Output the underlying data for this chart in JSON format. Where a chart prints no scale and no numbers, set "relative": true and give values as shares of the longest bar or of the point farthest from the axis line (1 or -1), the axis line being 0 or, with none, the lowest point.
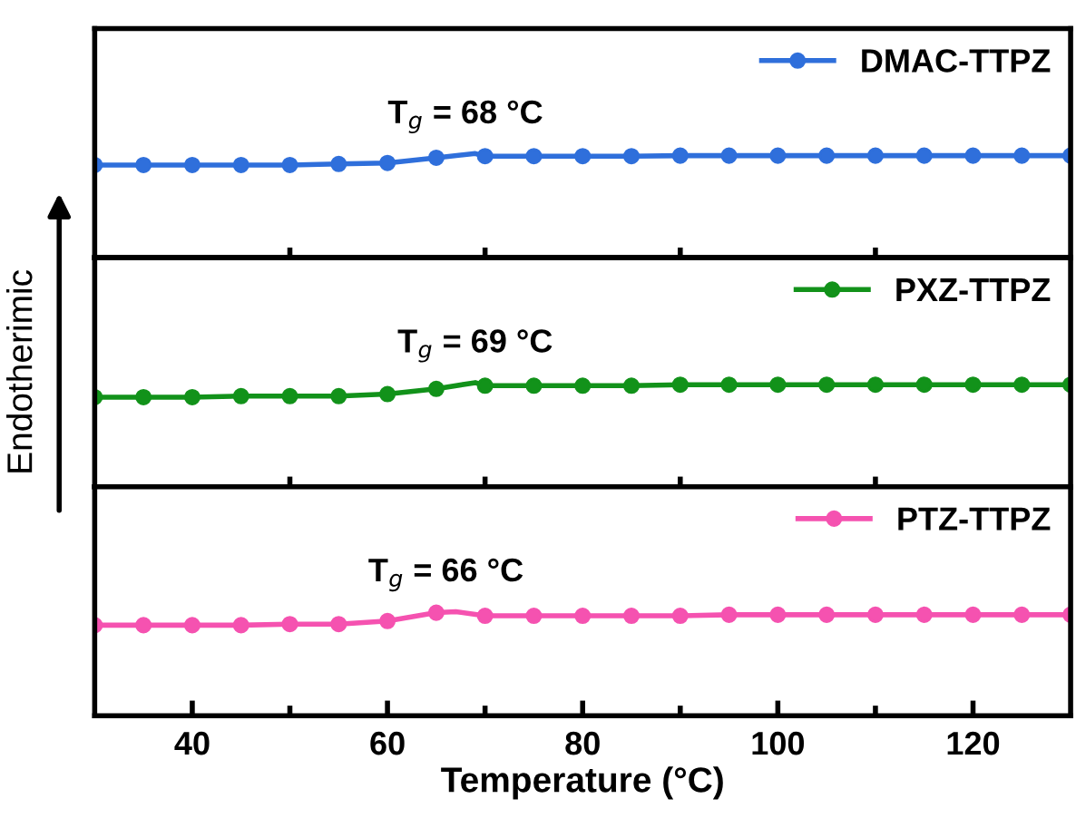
{
  "chart_data": [
    {
      "type": "line",
      "relative": true,
      "x": [
        30,
        35,
        40,
        45,
        50,
        55,
        60,
        65,
        69,
        70,
        75,
        80,
        85,
        90,
        95,
        100,
        105,
        110,
        115,
        120,
        125,
        130
      ],
      "series": [
        {
          "name": "DMAC-TTPZ",
          "color": "#2f6fdb",
          "values": [
            0.89,
            0.89,
            0.89,
            0.89,
            0.89,
            0.9,
            0.91,
            0.96,
            1,
            0.975,
            0.975,
            0.975,
            0.975,
            0.98,
            0.98,
            0.98,
            0.98,
            0.98,
            0.98,
            0.98,
            0.98,
            0.98
          ]
        }
      ],
      "xlim": [
        30,
        130
      ],
      "xticks": [
        40,
        {
          "value": 50,
          "label": null
        },
        60,
        {
          "value": 70,
          "label": null
        },
        80,
        {
          "value": 90,
          "label": null
        },
        100,
        {
          "value": 110,
          "label": null
        },
        120
      ],
      "annotations": [
        {
          "text": "T$_{g}$ = 68 °C",
          "x": 68,
          "y": 1
        }
      ],
      "legend": "top right",
      "marker": "circle",
      "line_style": "solid",
      "tick_labels": false
    },
    {
      "type": "line",
      "relative": true,
      "x": [
        30,
        35,
        40,
        45,
        50,
        55,
        60,
        65,
        69,
        70,
        75,
        80,
        85,
        90,
        95,
        100,
        105,
        110,
        115,
        120,
        125,
        130
      ],
      "series": [
        {
          "name": "PXZ-TTPZ",
          "color": "#12921a",
          "values": [
            0.86,
            0.86,
            0.86,
            0.87,
            0.87,
            0.87,
            0.89,
            0.94,
            1,
            0.97,
            0.97,
            0.97,
            0.97,
            0.98,
            0.98,
            0.98,
            0.98,
            0.98,
            0.98,
            0.98,
            0.98,
            0.98
          ]
        }
      ],
      "xlim": [
        30,
        130
      ],
      "xticks": [
        40,
        {
          "value": 50,
          "label": null
        },
        60,
        {
          "value": 70,
          "label": null
        },
        80,
        {
          "value": 90,
          "label": null
        },
        100,
        {
          "value": 110,
          "label": null
        },
        120
      ],
      "ylabel": "Endotherimic",
      "annotations": [
        {
          "text": "T$_{g}$ = 69 °C",
          "x": 69,
          "y": 1
        }
      ],
      "legend": "top right",
      "marker": "circle",
      "line_style": "solid",
      "tick_labels": false
    },
    {
      "type": "line",
      "relative": true,
      "x": [
        30,
        35,
        40,
        45,
        50,
        55,
        60,
        65,
        67,
        70,
        75,
        80,
        85,
        90,
        95,
        100,
        105,
        110,
        115,
        120,
        125,
        130
      ],
      "series": [
        {
          "name": "PTZ-TTPZ",
          "color": "#f552b0",
          "values": [
            0.87,
            0.87,
            0.87,
            0.87,
            0.88,
            0.88,
            0.91,
            0.99,
            1,
            0.96,
            0.96,
            0.96,
            0.96,
            0.96,
            0.97,
            0.97,
            0.97,
            0.97,
            0.97,
            0.97,
            0.97,
            0.97
          ]
        }
      ],
      "xlim": [
        30,
        130
      ],
      "xticks": [
        40,
        {
          "value": 50,
          "label": null
        },
        60,
        {
          "value": 70,
          "label": null
        },
        80,
        {
          "value": 90,
          "label": null
        },
        100,
        {
          "value": 110,
          "label": null
        },
        120
      ],
      "xlabel": "Temperature (°C)",
      "annotations": [
        {
          "text": "T$_{g}$ = 66 °C",
          "x": 66,
          "y": 1
        }
      ],
      "legend": "top right",
      "marker": "circle",
      "line_style": "solid",
      "tick_labels": "x"
    }
  ]
}
